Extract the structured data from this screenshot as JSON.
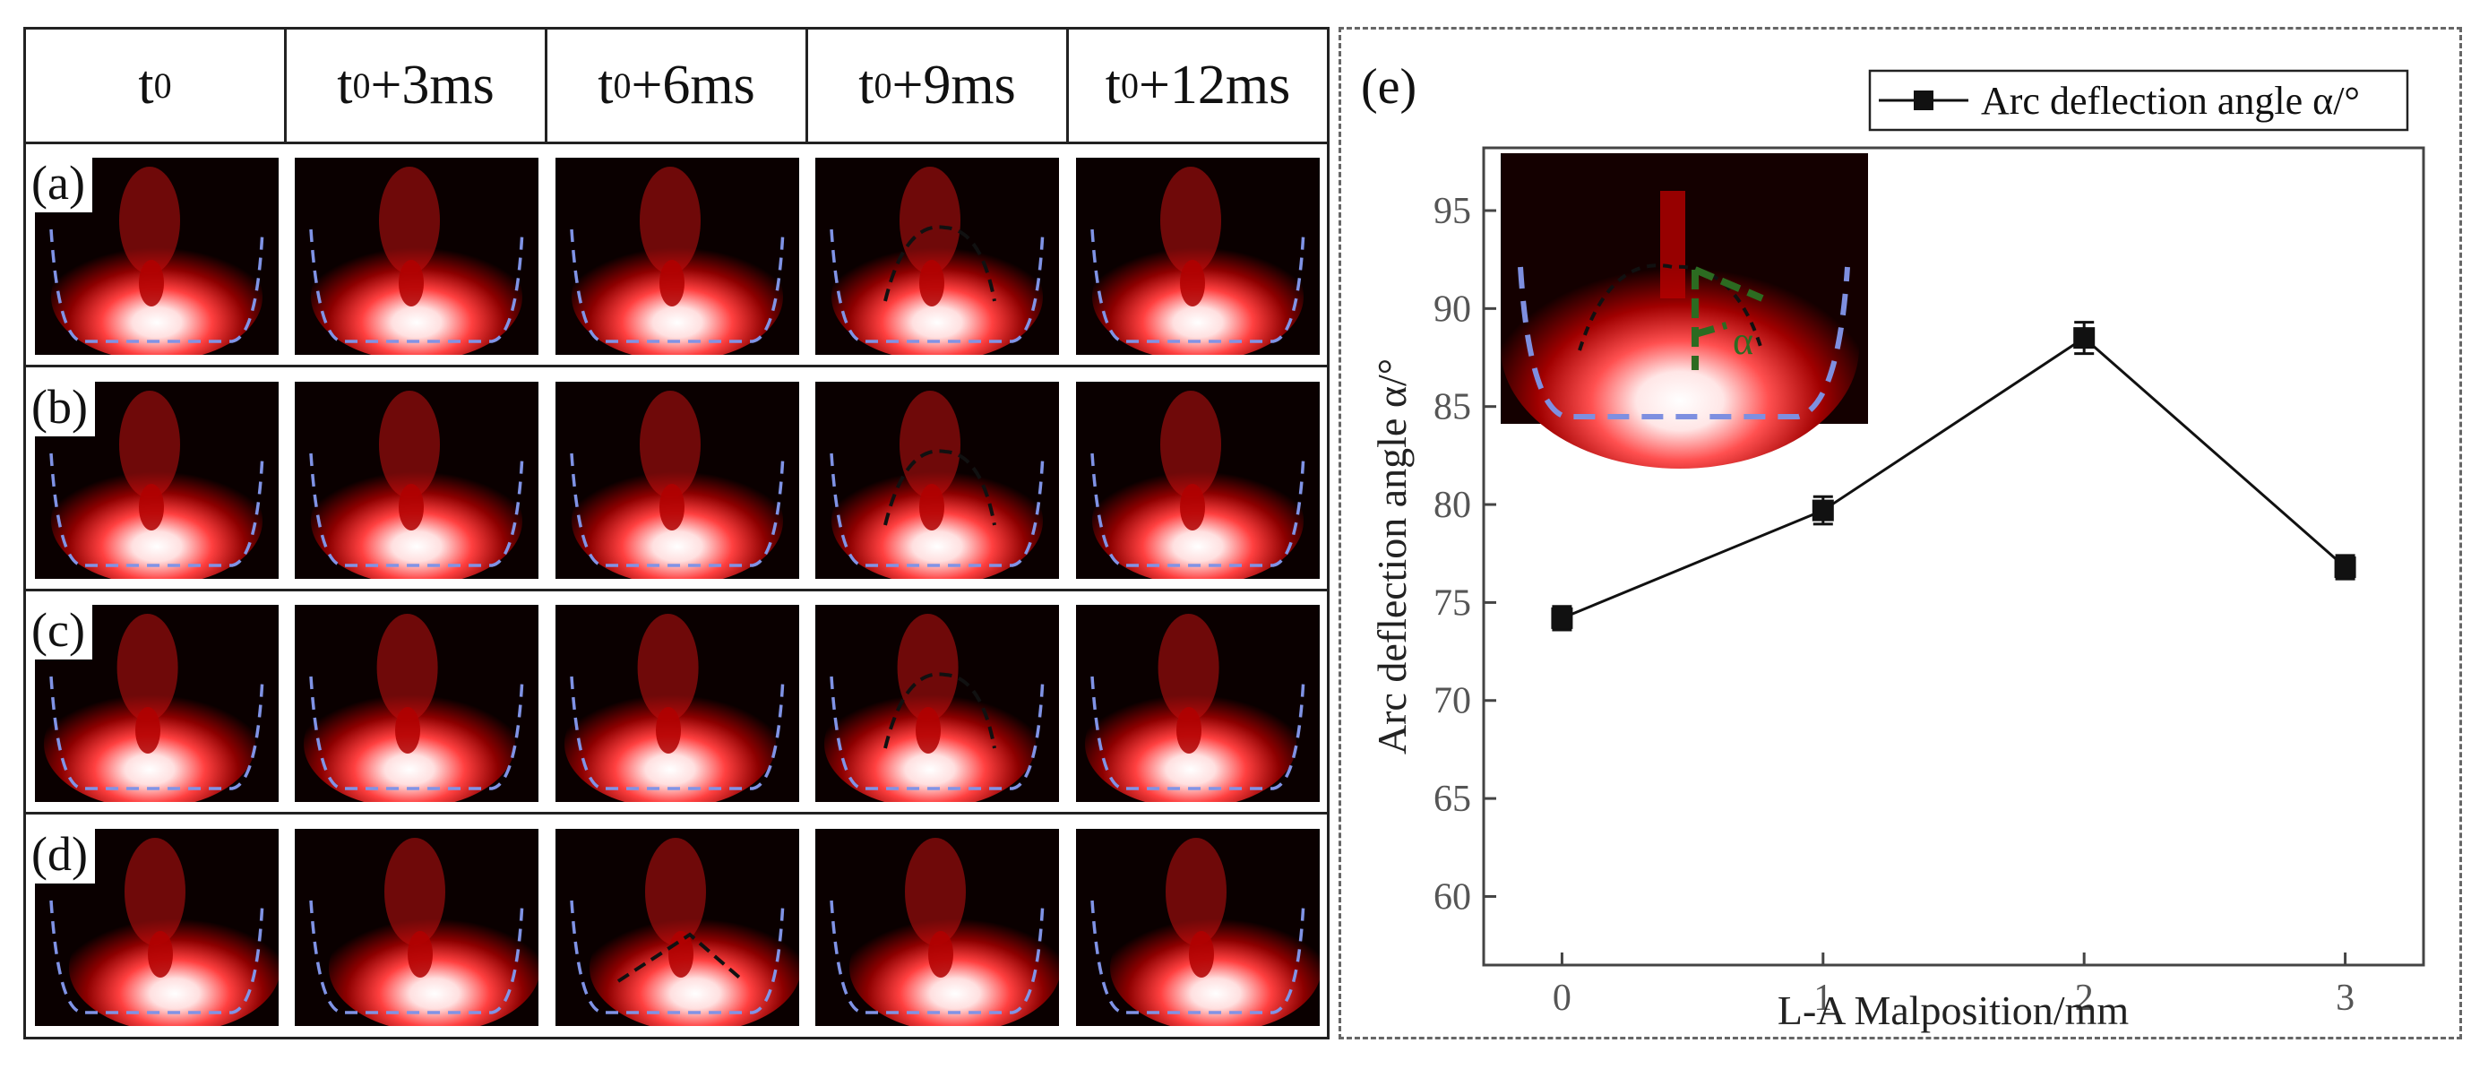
{
  "grid": {
    "columns": [
      {
        "base": "t",
        "sub": "0",
        "suffix": ""
      },
      {
        "base": "t",
        "sub": "0",
        "suffix": "+3ms"
      },
      {
        "base": "t",
        "sub": "0",
        "suffix": "+6ms"
      },
      {
        "base": "t",
        "sub": "0",
        "suffix": "+9ms"
      },
      {
        "base": "t",
        "sub": "0",
        "suffix": "+12ms"
      }
    ],
    "rows": [
      {
        "label": "(a)",
        "annotated_frame": 3
      },
      {
        "label": "(b)",
        "annotated_frame": 3
      },
      {
        "label": "(c)",
        "annotated_frame": 3
      },
      {
        "label": "(d)",
        "annotated_frame": 2
      }
    ]
  },
  "panel_e": {
    "label": "(e)",
    "inset_angle_symbol": "α"
  },
  "chart_data": {
    "type": "line",
    "title": "",
    "xlabel": "L-A Malposition/mm",
    "ylabel": "Arc deflection angle α/°",
    "xlim": [
      -0.3,
      3.3
    ],
    "ylim": [
      56.5,
      98.2
    ],
    "x_ticks": [
      0,
      1,
      2,
      3
    ],
    "y_ticks": [
      60,
      65,
      70,
      75,
      80,
      85,
      90,
      95
    ],
    "legend_position": "top-right",
    "series": [
      {
        "name": "Arc deflection angle α/°",
        "x": [
          0,
          1,
          2,
          3
        ],
        "y": [
          74.2,
          79.7,
          88.5,
          76.8
        ],
        "error": [
          0.6,
          0.7,
          0.8,
          0.6
        ],
        "marker": "square",
        "color": "#111111"
      }
    ]
  }
}
